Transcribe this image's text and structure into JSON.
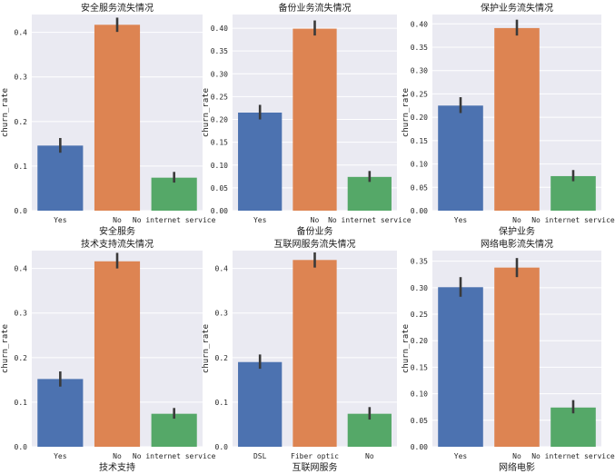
{
  "colors": {
    "panel_bg": "#eaeaf2",
    "grid": "#ffffff",
    "text": "#262626",
    "errorbar": "#3a3a3a",
    "palette": [
      "#4c72b0",
      "#dd8452",
      "#55a868"
    ]
  },
  "chart_data": [
    {
      "type": "bar",
      "title": "安全服务流失情况",
      "xlabel": "安全服务",
      "ylabel": "churn_rate",
      "categories": [
        "Yes",
        "No",
        "No internet service"
      ],
      "values": [
        0.146,
        0.417,
        0.074
      ],
      "ci": [
        [
          0.13,
          0.163
        ],
        [
          0.401,
          0.433
        ],
        [
          0.063,
          0.087
        ]
      ],
      "ylim": [
        0,
        0.44
      ],
      "yticks": [
        0.0,
        0.1,
        0.2,
        0.3,
        0.4
      ],
      "ytick_labels": [
        "0.0",
        "0.1",
        "0.2",
        "0.3",
        "0.4"
      ]
    },
    {
      "type": "bar",
      "title": "备份业务流失情况",
      "xlabel": "备份业务",
      "ylabel": "churn_rate",
      "categories": [
        "Yes",
        "No",
        "No internet service"
      ],
      "values": [
        0.215,
        0.399,
        0.074
      ],
      "ci": [
        [
          0.2,
          0.232
        ],
        [
          0.384,
          0.417
        ],
        [
          0.063,
          0.087
        ]
      ],
      "ylim": [
        0,
        0.43
      ],
      "yticks": [
        0.0,
        0.05,
        0.1,
        0.15,
        0.2,
        0.25,
        0.3,
        0.35,
        0.4
      ],
      "ytick_labels": [
        "0.00",
        "0.05",
        "0.10",
        "0.15",
        "0.20",
        "0.25",
        "0.30",
        "0.35",
        "0.40"
      ]
    },
    {
      "type": "bar",
      "title": "保护业务流失情况",
      "xlabel": "保护业务",
      "ylabel": "churn_rate",
      "categories": [
        "Yes",
        "No",
        "No internet service"
      ],
      "values": [
        0.225,
        0.391,
        0.074
      ],
      "ci": [
        [
          0.209,
          0.243
        ],
        [
          0.375,
          0.409
        ],
        [
          0.063,
          0.087
        ]
      ],
      "ylim": [
        0,
        0.42
      ],
      "yticks": [
        0.0,
        0.05,
        0.1,
        0.15,
        0.2,
        0.25,
        0.3,
        0.35,
        0.4
      ],
      "ytick_labels": [
        "0.00",
        "0.05",
        "0.10",
        "0.15",
        "0.20",
        "0.25",
        "0.30",
        "0.35",
        "0.40"
      ]
    },
    {
      "type": "bar",
      "title": "技术支持流失情况",
      "xlabel": "技术支持",
      "ylabel": "churn_rate",
      "categories": [
        "Yes",
        "No",
        "No internet service"
      ],
      "values": [
        0.152,
        0.416,
        0.074
      ],
      "ci": [
        [
          0.135,
          0.169
        ],
        [
          0.4,
          0.435
        ],
        [
          0.063,
          0.087
        ]
      ],
      "ylim": [
        0,
        0.44
      ],
      "yticks": [
        0.0,
        0.1,
        0.2,
        0.3,
        0.4
      ],
      "ytick_labels": [
        "0.0",
        "0.1",
        "0.2",
        "0.3",
        "0.4"
      ]
    },
    {
      "type": "bar",
      "title": "互联网服务流失情况",
      "xlabel": "互联网服务",
      "ylabel": "churn_rate",
      "categories": [
        "DSL",
        "Fiber optic",
        "No"
      ],
      "values": [
        0.19,
        0.419,
        0.074
      ],
      "ci": [
        [
          0.175,
          0.207
        ],
        [
          0.402,
          0.436
        ],
        [
          0.061,
          0.089
        ]
      ],
      "ylim": [
        0,
        0.44
      ],
      "yticks": [
        0.0,
        0.1,
        0.2,
        0.3,
        0.4
      ],
      "ytick_labels": [
        "0.0",
        "0.1",
        "0.2",
        "0.3",
        "0.4"
      ]
    },
    {
      "type": "bar",
      "title": "网络电影流失情况",
      "xlabel": "网络电影",
      "ylabel": "churn_rate",
      "categories": [
        "Yes",
        "No",
        "No internet service"
      ],
      "values": [
        0.301,
        0.338,
        0.074
      ],
      "ci": [
        [
          0.283,
          0.32
        ],
        [
          0.32,
          0.356
        ],
        [
          0.063,
          0.088
        ]
      ],
      "ylim": [
        0,
        0.37
      ],
      "yticks": [
        0.0,
        0.05,
        0.1,
        0.15,
        0.2,
        0.25,
        0.3,
        0.35
      ],
      "ytick_labels": [
        "0.00",
        "0.05",
        "0.10",
        "0.15",
        "0.20",
        "0.25",
        "0.30",
        "0.35"
      ]
    }
  ]
}
